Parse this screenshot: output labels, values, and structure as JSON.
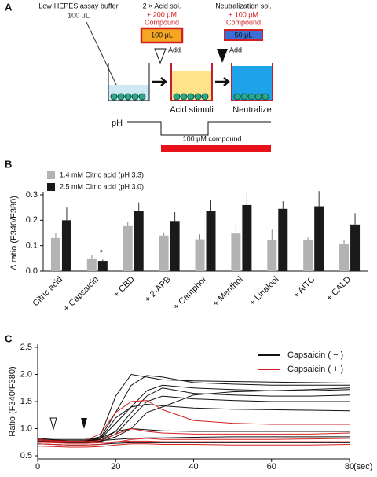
{
  "figure": {
    "panel_labels": [
      "A",
      "B",
      "C"
    ]
  },
  "diagram": {
    "buffer_label": "Low-HEPES assay buffer",
    "buffer_volume": "100 μL",
    "acid_title": "2 × Acid sol.",
    "acid_compound": "+ 200 μM",
    "acid_compound_2": "Compound",
    "acid_volume": "100 μL",
    "neutral_title": "Neutralization sol.",
    "neutral_compound": "+ 100 μM",
    "neutral_compound_2": "Compound",
    "neutral_volume": "50 μL",
    "add_1": "Add",
    "add_2": "Add",
    "step_1": "Acid stimuli",
    "step_2": "Neutralize",
    "ph_label": "pH",
    "compound_bar_label": "100 μM compound"
  },
  "chart_data": [
    {
      "type": "bar",
      "ylabel": "Δ ratio (F340/F380)",
      "annotation": "*",
      "categories": [
        "Citric acid",
        "+ Capsaicin",
        "+ CBD",
        "+ 2-APB",
        "+ Camphor",
        "+ Menthol",
        "+ Linalool",
        "+ AITC",
        "+ CALD"
      ],
      "series": [
        {
          "name": "1.4 mM Citric acid (pH 3.3)",
          "color": "#b3b3b3",
          "values": [
            0.13,
            0.05,
            0.18,
            0.14,
            0.125,
            0.148,
            0.123,
            0.122,
            0.105
          ],
          "errors": [
            0.02,
            0.015,
            0.015,
            0.012,
            0.02,
            0.035,
            0.04,
            0.01,
            0.015
          ]
        },
        {
          "name": "2.5 mM Citric acid (pH 3.0)",
          "color": "#1a1a1a",
          "values": [
            0.2,
            0.04,
            0.235,
            0.197,
            0.238,
            0.26,
            0.245,
            0.255,
            0.183
          ],
          "errors": [
            0.05,
            0.005,
            0.035,
            0.035,
            0.04,
            0.05,
            0.03,
            0.06,
            0.045
          ]
        }
      ],
      "ylim": [
        0,
        0.3
      ],
      "yticks": [
        {
          "value": 0,
          "label": "0.0"
        },
        0.1,
        0.2,
        0.3
      ]
    },
    {
      "type": "line",
      "ylabel": "Ratio (F340/F380)",
      "xlabel": "(sec)",
      "x": [
        0,
        4,
        8,
        12,
        16,
        20,
        24,
        28,
        32,
        40,
        50,
        60,
        70,
        80
      ],
      "series": [
        {
          "name": "Capsaicin ( − )",
          "color": "#111111",
          "traces": [
            [
              0.8,
              0.78,
              0.77,
              0.78,
              0.85,
              1.6,
              2.0,
              1.95,
              1.9,
              1.88,
              1.87,
              1.86,
              1.85,
              1.84
            ],
            [
              0.78,
              0.77,
              0.76,
              0.77,
              0.82,
              1.3,
              1.8,
              1.98,
              1.95,
              1.85,
              1.82,
              1.8,
              1.8,
              1.8
            ],
            [
              0.8,
              0.79,
              0.78,
              0.78,
              0.8,
              1.1,
              1.4,
              1.7,
              1.8,
              1.75,
              1.72,
              1.7,
              1.7,
              1.72
            ],
            [
              0.77,
              0.76,
              0.75,
              0.76,
              0.78,
              0.95,
              1.3,
              1.6,
              1.75,
              1.65,
              1.62,
              1.6,
              1.6,
              1.62
            ],
            [
              0.76,
              0.75,
              0.75,
              0.75,
              0.77,
              0.9,
              1.2,
              1.5,
              1.6,
              1.55,
              1.52,
              1.5,
              1.5,
              1.5
            ],
            [
              0.78,
              0.77,
              0.76,
              0.76,
              0.8,
              1.2,
              1.4,
              1.45,
              1.42,
              1.38,
              1.36,
              1.35,
              1.34,
              1.33
            ],
            [
              0.75,
              0.75,
              0.74,
              0.74,
              0.76,
              0.85,
              1.0,
              1.3,
              1.4,
              1.62,
              1.68,
              1.7,
              1.72,
              1.75
            ],
            [
              0.82,
              0.8,
              0.8,
              0.8,
              0.82,
              0.95,
              1.0,
              0.98,
              0.96,
              0.95,
              0.95,
              0.95,
              0.95,
              0.95
            ],
            [
              0.72,
              0.71,
              0.7,
              0.7,
              0.71,
              0.73,
              0.74,
              0.74,
              0.74,
              0.74,
              0.74,
              0.74,
              0.74,
              0.74
            ],
            [
              0.8,
              0.78,
              0.77,
              0.77,
              0.78,
              0.8,
              0.82,
              0.83,
              0.83,
              0.84,
              0.85,
              0.85,
              0.85,
              0.85
            ]
          ]
        },
        {
          "name": "Capsaicin ( + )",
          "color": "#d42020",
          "traces": [
            [
              0.8,
              0.78,
              0.77,
              0.77,
              0.9,
              1.3,
              1.5,
              1.52,
              1.35,
              1.15,
              1.1,
              1.08,
              1.08,
              1.08
            ],
            [
              0.78,
              0.77,
              0.76,
              0.76,
              0.78,
              0.9,
              1.0,
              0.95,
              0.92,
              0.9,
              0.9,
              0.9,
              0.9,
              0.92
            ],
            [
              0.72,
              0.71,
              0.7,
              0.7,
              0.71,
              0.75,
              0.8,
              0.82,
              0.8,
              0.8,
              0.8,
              0.8,
              0.81,
              0.82
            ],
            [
              0.68,
              0.67,
              0.66,
              0.66,
              0.67,
              0.7,
              0.72,
              0.72,
              0.71,
              0.71,
              0.7,
              0.7,
              0.7,
              0.71
            ],
            [
              0.75,
              0.74,
              0.73,
              0.73,
              0.74,
              0.76,
              0.77,
              0.77,
              0.76,
              0.76,
              0.76,
              0.76,
              0.76,
              0.76
            ]
          ]
        }
      ],
      "xlim": [
        0,
        80
      ],
      "xticks": [
        0,
        20,
        40,
        60,
        80
      ],
      "ylim": [
        0.5,
        2.5
      ],
      "yticks": [
        0.5,
        {
          "value": 1,
          "label": "1.0"
        },
        1.5,
        {
          "value": 2,
          "label": "2.0"
        },
        2.5
      ]
    }
  ]
}
